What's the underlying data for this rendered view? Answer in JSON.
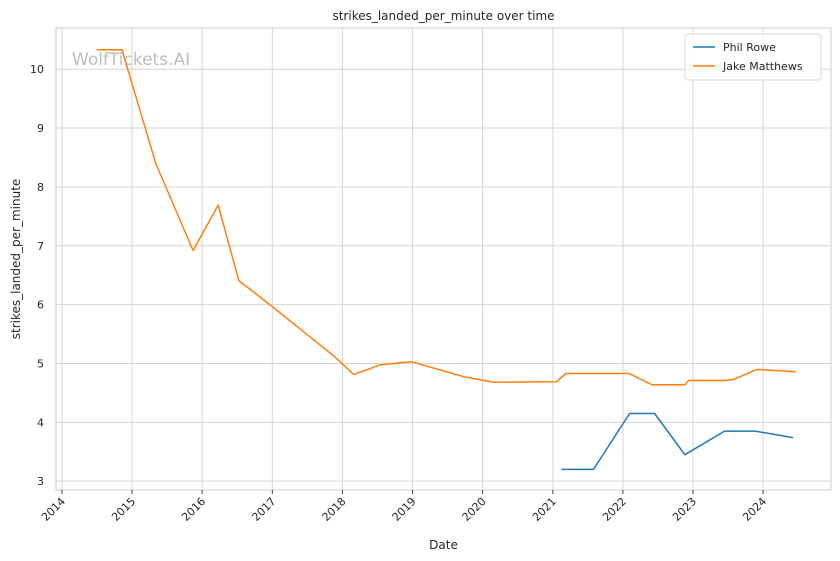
{
  "watermark": "WolfTickets.AI",
  "chart_data": {
    "type": "line",
    "title": "strikes_landed_per_minute over time",
    "xlabel": "Date",
    "ylabel": "strikes_landed_per_minute",
    "x_ticks": [
      "2014",
      "2015",
      "2016",
      "2017",
      "2018",
      "2019",
      "2020",
      "2021",
      "2022",
      "2023",
      "2024"
    ],
    "y_ticks": [
      3,
      4,
      5,
      6,
      7,
      8,
      9,
      10
    ],
    "xlim": [
      "2013-12-01",
      "2024-12-20"
    ],
    "ylim": [
      2.85,
      10.7
    ],
    "grid": true,
    "legend_position": "top-right",
    "series": [
      {
        "name": "Phil Rowe",
        "color": "#1f77b4",
        "points": [
          [
            "2021-02-15",
            3.2
          ],
          [
            "2021-08-01",
            3.2
          ],
          [
            "2022-02-05",
            4.15
          ],
          [
            "2022-06-15",
            4.15
          ],
          [
            "2022-11-20",
            3.45
          ],
          [
            "2023-06-15",
            3.85
          ],
          [
            "2023-11-20",
            3.85
          ],
          [
            "2024-06-05",
            3.74
          ]
        ]
      },
      {
        "name": "Jake Matthews",
        "color": "#ff7f0e",
        "points": [
          [
            "2014-07-01",
            10.33
          ],
          [
            "2014-11-10",
            10.33
          ],
          [
            "2015-05-05",
            8.4
          ],
          [
            "2015-11-15",
            6.92
          ],
          [
            "2016-03-25",
            7.69
          ],
          [
            "2016-07-10",
            6.41
          ],
          [
            "2016-12-30",
            5.97
          ],
          [
            "2017-11-20",
            5.12
          ],
          [
            "2018-03-01",
            4.81
          ],
          [
            "2018-07-20",
            4.98
          ],
          [
            "2018-12-25",
            5.03
          ],
          [
            "2019-10-01",
            4.77
          ],
          [
            "2020-03-01",
            4.68
          ],
          [
            "2021-01-20",
            4.69
          ],
          [
            "2021-03-10",
            4.83
          ],
          [
            "2022-02-01",
            4.83
          ],
          [
            "2022-06-01",
            4.64
          ],
          [
            "2022-11-20",
            4.64
          ],
          [
            "2022-12-10",
            4.71
          ],
          [
            "2023-06-20",
            4.71
          ],
          [
            "2023-08-01",
            4.73
          ],
          [
            "2023-12-01",
            4.9
          ],
          [
            "2024-06-20",
            4.86
          ]
        ]
      }
    ]
  }
}
